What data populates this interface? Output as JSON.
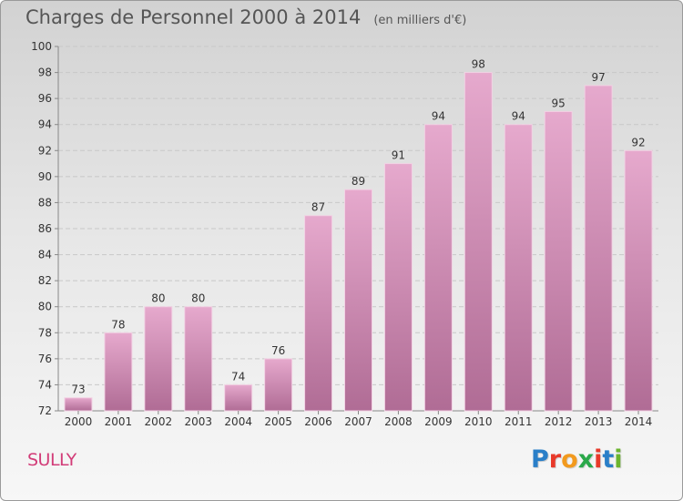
{
  "header": {
    "title": "Charges de Personnel 2000 à 2014",
    "unit": "(en milliers d'€)"
  },
  "footer": {
    "commune": "SULLY",
    "logo_text": "Proxiti",
    "logo_colors": [
      "#2a7fc8",
      "#e8392a",
      "#f29a1e",
      "#2aa84a",
      "#e8392a",
      "#2a7fc8",
      "#6bb52e"
    ]
  },
  "colors": {
    "bar_top": "#e6a9cd",
    "bar_bottom": "#b06c95",
    "commune_text": "#d23c78"
  },
  "chart_data": {
    "type": "bar",
    "title": "Charges de Personnel 2000 à 2014",
    "subtitle": "(en milliers d'€)",
    "categories": [
      "2000",
      "2001",
      "2002",
      "2003",
      "2004",
      "2005",
      "2006",
      "2007",
      "2008",
      "2009",
      "2010",
      "2011",
      "2012",
      "2013",
      "2014"
    ],
    "values": [
      73,
      78,
      80,
      80,
      74,
      76,
      87,
      89,
      91,
      94,
      98,
      94,
      95,
      97,
      92
    ],
    "ylim": [
      72,
      100
    ],
    "yticks": [
      72,
      74,
      76,
      78,
      80,
      82,
      84,
      86,
      88,
      90,
      92,
      94,
      96,
      98,
      100
    ],
    "grid": true,
    "data_labels": true
  }
}
